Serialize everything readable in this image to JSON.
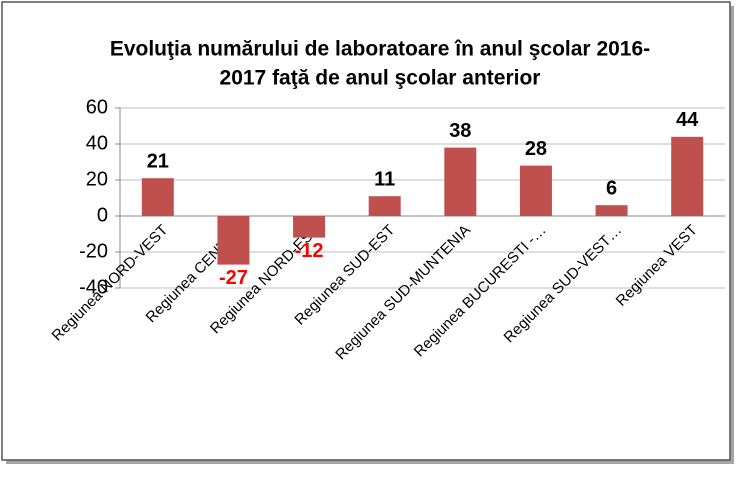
{
  "chart_data": {
    "type": "bar",
    "title": [
      "Evoluţia numărului de laboratoare în anul şcolar 2016-",
      "2017 faţă de anul şcolar anterior"
    ],
    "categories": [
      "Regiunea NORD-VEST",
      "Regiunea CENTRU",
      "Regiunea NORD-EST",
      "Regiunea SUD-EST",
      "Regiunea SUD-MUNTENIA",
      "Regiunea BUCURESTI -…",
      "Regiunea SUD-VEST…",
      "Regiunea VEST"
    ],
    "values": [
      21,
      -27,
      -12,
      11,
      38,
      28,
      6,
      44
    ],
    "color": "#c0504d",
    "negative_label_color": "#ff0000",
    "ylim": [
      -40,
      60
    ],
    "yticks": [
      -40,
      -20,
      0,
      20,
      40,
      60
    ],
    "grid": true
  }
}
